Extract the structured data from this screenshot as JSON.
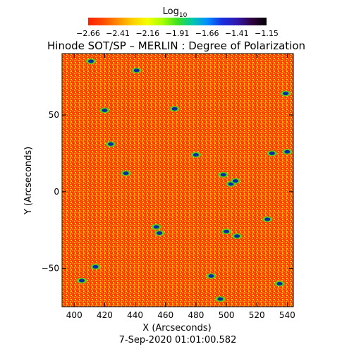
{
  "chart_data": {
    "type": "heatmap",
    "title": "Hinode SOT/SP – MERLIN : Degree of Polarization",
    "colorbar": {
      "label_base": "Log",
      "label_sub": "10",
      "ticks": [
        "−2.66",
        "−2.41",
        "−2.16",
        "−1.91",
        "−1.66",
        "−1.41",
        "−1.15"
      ],
      "range": [
        -2.66,
        -1.15
      ],
      "colors": [
        "#ff1f00",
        "#ff4a00",
        "#ff8c00",
        "#ffd000",
        "#f2ff00",
        "#a8ff00",
        "#40e020",
        "#00c8a8",
        "#0090ff",
        "#1830e0",
        "#3018b0",
        "#300040",
        "#000000"
      ]
    },
    "xaxis": {
      "label": "X (Arcseconds)",
      "range": [
        392,
        544
      ],
      "ticks": [
        400,
        420,
        440,
        460,
        480,
        500,
        520,
        540
      ]
    },
    "yaxis": {
      "label": "Y (Arcseconds)",
      "range": [
        -75,
        90
      ],
      "ticks": [
        -50,
        0,
        50
      ]
    },
    "background_color": "#ff3a00",
    "timestamp": "7-Sep-2020 01:01:00.582",
    "blue_patches": [
      {
        "x": 411,
        "y": 85
      },
      {
        "x": 420,
        "y": 53
      },
      {
        "x": 424,
        "y": 31
      },
      {
        "x": 441,
        "y": 79
      },
      {
        "x": 454,
        "y": -23
      },
      {
        "x": 456,
        "y": -27
      },
      {
        "x": 466,
        "y": 54
      },
      {
        "x": 480,
        "y": 24
      },
      {
        "x": 498,
        "y": 11
      },
      {
        "x": 503,
        "y": 5
      },
      {
        "x": 506,
        "y": 7
      },
      {
        "x": 500,
        "y": -26
      },
      {
        "x": 507,
        "y": -29
      },
      {
        "x": 414,
        "y": -49
      },
      {
        "x": 405,
        "y": -58
      },
      {
        "x": 490,
        "y": -55
      },
      {
        "x": 527,
        "y": -18
      },
      {
        "x": 530,
        "y": 25
      },
      {
        "x": 539,
        "y": 64
      },
      {
        "x": 540,
        "y": 26
      },
      {
        "x": 496,
        "y": -70
      },
      {
        "x": 535,
        "y": -60
      },
      {
        "x": 434,
        "y": 12
      }
    ]
  }
}
